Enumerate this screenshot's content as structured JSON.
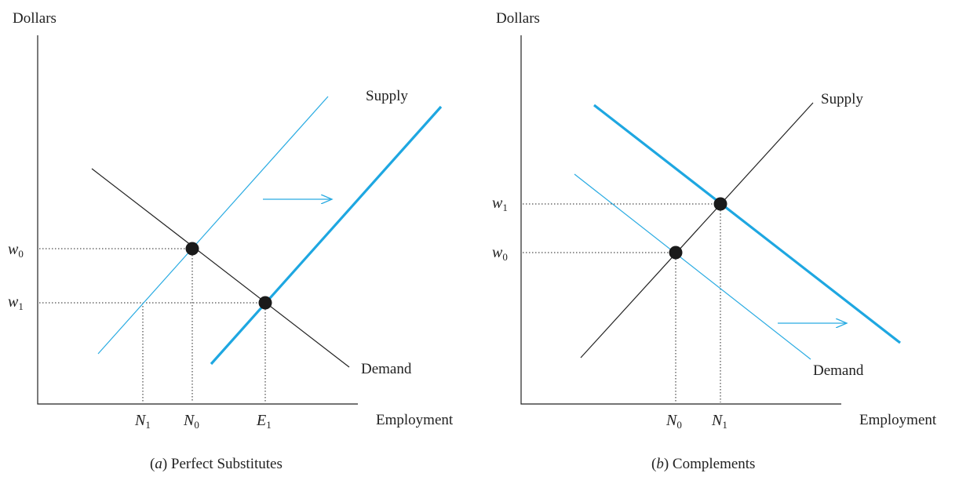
{
  "panel_a": {
    "y_axis_title": "Dollars",
    "x_axis_title": "Employment",
    "supply_label": "Supply",
    "demand_label": "Demand",
    "w0": {
      "base": "w",
      "sub": "0"
    },
    "w1": {
      "base": "w",
      "sub": "1"
    },
    "n1": {
      "base": "N",
      "sub": "1"
    },
    "n0": {
      "base": "N",
      "sub": "0"
    },
    "e1": {
      "base": "E",
      "sub": "1"
    },
    "caption": {
      "letter": "a",
      "text": " Perfect Substitutes"
    }
  },
  "panel_b": {
    "y_axis_title": "Dollars",
    "x_axis_title": "Employment",
    "supply_label": "Supply",
    "demand_label": "Demand",
    "w1": {
      "base": "w",
      "sub": "1"
    },
    "w0": {
      "base": "w",
      "sub": "0"
    },
    "n0": {
      "base": "N",
      "sub": "0"
    },
    "n1": {
      "base": "N",
      "sub": "1"
    },
    "caption": {
      "letter": "b",
      "text": " Complements"
    }
  },
  "colors": {
    "shift_curve": "#1ea7e1",
    "original_curve": "#29abe2",
    "line": "#222222"
  }
}
